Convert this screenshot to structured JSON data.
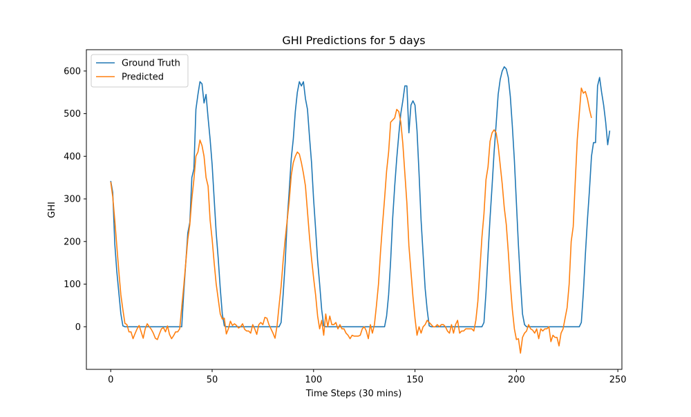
{
  "chart_data": {
    "type": "line",
    "title": "GHI Predictions for 5 days",
    "xlabel": "Time Steps (30 mins)",
    "ylabel": "GHI",
    "xlim": [
      -12,
      252
    ],
    "ylim": [
      -100,
      650
    ],
    "xticks": [
      0,
      50,
      100,
      150,
      200,
      250
    ],
    "yticks": [
      0,
      100,
      200,
      300,
      400,
      500,
      600
    ],
    "legend_position": "upper-left",
    "series": [
      {
        "name": "Ground Truth",
        "color": "#1f77b4",
        "values": [
          342,
          315,
          195,
          130,
          80,
          30,
          2,
          0,
          0,
          0,
          0,
          0,
          0,
          0,
          0,
          0,
          0,
          0,
          0,
          0,
          0,
          0,
          0,
          0,
          0,
          0,
          0,
          0,
          0,
          0,
          0,
          0,
          0,
          0,
          0,
          0,
          80,
          150,
          220,
          245,
          350,
          370,
          510,
          545,
          575,
          570,
          525,
          545,
          490,
          440,
          380,
          300,
          220,
          160,
          90,
          30,
          2,
          0,
          0,
          0,
          0,
          0,
          0,
          0,
          0,
          0,
          0,
          0,
          0,
          0,
          0,
          0,
          0,
          0,
          0,
          0,
          0,
          0,
          0,
          0,
          0,
          0,
          0,
          0,
          10,
          75,
          150,
          250,
          320,
          395,
          440,
          505,
          550,
          575,
          565,
          575,
          535,
          510,
          445,
          385,
          300,
          230,
          155,
          100,
          40,
          2,
          0,
          0,
          0,
          0,
          0,
          0,
          0,
          0,
          0,
          0,
          0,
          0,
          0,
          0,
          0,
          0,
          0,
          0,
          0,
          0,
          0,
          0,
          0,
          0,
          0,
          0,
          0,
          0,
          0,
          0,
          25,
          75,
          155,
          255,
          330,
          395,
          450,
          500,
          530,
          565,
          565,
          455,
          520,
          530,
          520,
          460,
          360,
          250,
          170,
          90,
          40,
          2,
          0,
          0,
          0,
          0,
          0,
          0,
          0,
          0,
          0,
          0,
          0,
          0,
          0,
          0,
          0,
          0,
          0,
          0,
          0,
          0,
          0,
          0,
          0,
          0,
          0,
          0,
          10,
          80,
          170,
          255,
          330,
          410,
          475,
          545,
          580,
          600,
          610,
          605,
          585,
          540,
          470,
          390,
          290,
          190,
          105,
          30,
          5,
          0,
          0,
          0,
          0,
          0,
          0,
          0,
          0,
          0,
          0,
          0,
          0,
          0,
          0,
          0,
          0,
          0,
          0,
          0,
          0,
          0,
          0,
          0,
          0,
          0,
          0,
          0,
          10,
          80,
          170,
          250,
          320,
          400,
          432,
          432,
          565,
          585,
          550,
          520,
          480,
          427,
          460
        ]
      },
      {
        "name": "Predicted",
        "color": "#ff7f0e",
        "values": [
          340,
          305,
          250,
          190,
          130,
          75,
          40,
          8,
          5,
          -12,
          -12,
          -28,
          -16,
          -5,
          3,
          -12,
          -27,
          -5,
          7,
          0,
          -6,
          -15,
          -27,
          -30,
          -17,
          -5,
          -2,
          -12,
          2,
          -18,
          -28,
          -21,
          -12,
          -12,
          -5,
          45,
          95,
          150,
          205,
          240,
          300,
          345,
          400,
          410,
          438,
          425,
          400,
          350,
          330,
          250,
          205,
          150,
          100,
          65,
          30,
          18,
          20,
          -17,
          -5,
          13,
          3,
          7,
          3,
          -3,
          0,
          7,
          -6,
          -10,
          -10,
          -15,
          5,
          -5,
          -18,
          5,
          10,
          5,
          22,
          20,
          5,
          -5,
          -15,
          -27,
          2,
          50,
          95,
          155,
          205,
          250,
          295,
          355,
          385,
          400,
          410,
          405,
          385,
          360,
          330,
          270,
          210,
          160,
          115,
          75,
          25,
          -5,
          15,
          -20,
          30,
          0,
          25,
          5,
          5,
          10,
          -5,
          5,
          -5,
          -5,
          -15,
          -20,
          -28,
          -20,
          -22,
          -22,
          -22,
          -20,
          -5,
          0,
          -10,
          -28,
          5,
          -15,
          5,
          50,
          100,
          175,
          240,
          300,
          365,
          410,
          480,
          485,
          490,
          510,
          505,
          480,
          430,
          360,
          290,
          190,
          130,
          70,
          20,
          -20,
          0,
          -15,
          0,
          5,
          15,
          10,
          5,
          0,
          0,
          5,
          0,
          5,
          5,
          0,
          -10,
          -15,
          5,
          -15,
          5,
          15,
          -15,
          -10,
          -10,
          -5,
          -5,
          -5,
          -5,
          -10,
          15,
          60,
          135,
          210,
          265,
          345,
          375,
          435,
          455,
          462,
          455,
          425,
          380,
          335,
          280,
          240,
          175,
          100,
          40,
          -5,
          -30,
          -28,
          -62,
          -25,
          -15,
          -10,
          5,
          -5,
          -8,
          -15,
          -5,
          -28,
          -5,
          -10,
          -5,
          -5,
          0,
          -35,
          -20,
          -25,
          -25,
          -45,
          -15,
          -5,
          20,
          45,
          100,
          200,
          235,
          340,
          440,
          500,
          560,
          548,
          552,
          535,
          510,
          490
        ]
      }
    ]
  }
}
